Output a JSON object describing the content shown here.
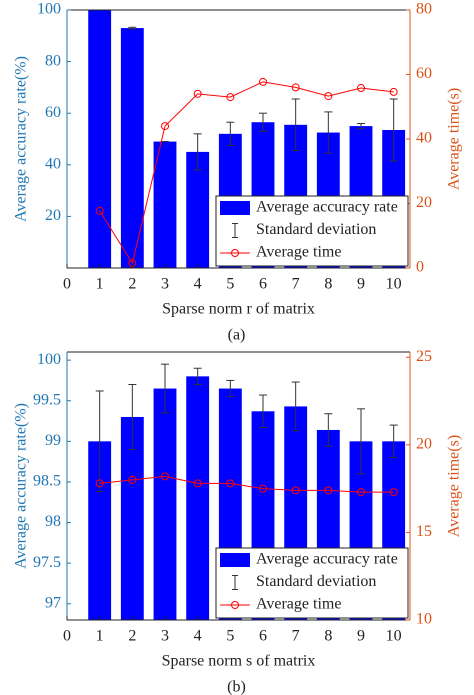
{
  "chart_data": [
    {
      "type": "bar",
      "caption": "(a)",
      "xlabel": "Sparse norm r of matrix",
      "ylabel": "Average accuracy rate(%)",
      "y2label": "Average time(s)",
      "x": [
        1,
        2,
        3,
        4,
        5,
        6,
        7,
        8,
        9,
        10
      ],
      "xlim": [
        0,
        10.5
      ],
      "xticks": [
        0,
        1,
        2,
        3,
        4,
        5,
        6,
        7,
        8,
        9,
        10
      ],
      "ylim": [
        0,
        100
      ],
      "yticks": [
        20,
        40,
        60,
        80,
        100
      ],
      "y2lim": [
        0,
        80
      ],
      "y2ticks": [
        0,
        20,
        40,
        60,
        80
      ],
      "error_name": "Standard deviation",
      "legend": "lower right",
      "series": [
        {
          "name": "Average accuracy rate",
          "color": "#0000ff",
          "values": [
            100,
            93,
            49,
            45,
            52,
            56.5,
            55.5,
            52.5,
            55,
            53.5
          ],
          "errors": [
            0,
            0.3,
            0,
            7,
            4.5,
            3.5,
            10,
            8,
            1,
            12
          ]
        },
        {
          "name": "Average time",
          "color": "#ff0000",
          "axis": "y2",
          "values": [
            17.7,
            1.5,
            44,
            54,
            53,
            57.7,
            56,
            53.3,
            55.8,
            54.6
          ]
        }
      ]
    },
    {
      "type": "bar",
      "caption": "(b)",
      "xlabel": "Sparse norm s of matrix",
      "ylabel": "Average accuracy rate(%)",
      "y2label": "Average time(s)",
      "x": [
        1,
        2,
        3,
        4,
        5,
        6,
        7,
        8,
        9,
        10
      ],
      "xlim": [
        0,
        10.5
      ],
      "xticks": [
        0,
        1,
        2,
        3,
        4,
        5,
        6,
        7,
        8,
        9,
        10
      ],
      "ylim": [
        96.8,
        100.1
      ],
      "yticks": [
        97,
        97.5,
        98,
        98.5,
        99,
        99.5,
        100
      ],
      "y2lim": [
        10,
        25.3
      ],
      "y2ticks": [
        10,
        15,
        20,
        25
      ],
      "error_name": "Standard deviation",
      "legend": "lower right",
      "series": [
        {
          "name": "Average accuracy rate",
          "color": "#0000ff",
          "values": [
            99.0,
            99.3,
            99.65,
            99.8,
            99.65,
            99.37,
            99.43,
            99.14,
            99.0,
            99.0
          ],
          "errors": [
            0.62,
            0.4,
            0.3,
            0.1,
            0.1,
            0.2,
            0.3,
            0.2,
            0.4,
            0.2
          ]
        },
        {
          "name": "Average time",
          "color": "#ff0000",
          "axis": "y2",
          "values": [
            17.8,
            18.0,
            18.2,
            17.8,
            17.8,
            17.5,
            17.4,
            17.4,
            17.3,
            17.3
          ]
        }
      ]
    }
  ]
}
